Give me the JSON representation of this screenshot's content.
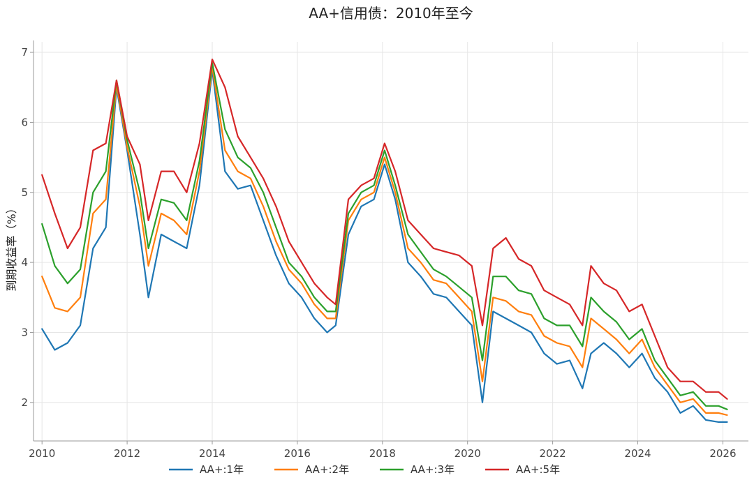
{
  "chart_data": {
    "type": "line",
    "title": "AA+信用债：2010年至今",
    "xlabel": "",
    "ylabel": "到期收益率（%）",
    "xlim": [
      2009.8,
      2026.6
    ],
    "ylim": [
      1.45,
      7.15
    ],
    "x_ticks": [
      2010,
      2012,
      2014,
      2016,
      2018,
      2020,
      2022,
      2024,
      2026
    ],
    "x_tick_labels": [
      "2010",
      "2012",
      "2014",
      "2016",
      "2018",
      "2020",
      "2022",
      "2024",
      "2026"
    ],
    "y_ticks": [
      2,
      3,
      4,
      5,
      6,
      7
    ],
    "y_tick_labels": [
      "2",
      "3",
      "4",
      "5",
      "6",
      "7"
    ],
    "grid": true,
    "legend_position": "bottom",
    "x": [
      2010.0,
      2010.3,
      2010.6,
      2010.9,
      2011.2,
      2011.5,
      2011.75,
      2012.0,
      2012.3,
      2012.5,
      2012.8,
      2013.1,
      2013.4,
      2013.7,
      2014.0,
      2014.3,
      2014.6,
      2014.9,
      2015.2,
      2015.5,
      2015.8,
      2016.1,
      2016.4,
      2016.7,
      2016.9,
      2017.2,
      2017.5,
      2017.8,
      2018.05,
      2018.3,
      2018.6,
      2018.9,
      2019.2,
      2019.5,
      2019.8,
      2020.1,
      2020.35,
      2020.6,
      2020.9,
      2021.2,
      2021.5,
      2021.8,
      2022.1,
      2022.4,
      2022.7,
      2022.9,
      2023.2,
      2023.5,
      2023.8,
      2024.1,
      2024.4,
      2024.7,
      2025.0,
      2025.3,
      2025.6,
      2025.9,
      2026.1
    ],
    "series": [
      {
        "name": "AA+:1年",
        "color": "#1f77b4",
        "values": [
          3.05,
          2.75,
          2.85,
          3.1,
          4.2,
          4.5,
          6.5,
          5.6,
          4.4,
          3.5,
          4.4,
          4.3,
          4.2,
          5.1,
          6.75,
          5.3,
          5.05,
          5.1,
          4.6,
          4.1,
          3.7,
          3.5,
          3.2,
          3.0,
          3.1,
          4.4,
          4.8,
          4.9,
          5.4,
          4.9,
          4.0,
          3.8,
          3.55,
          3.5,
          3.3,
          3.1,
          2.0,
          3.3,
          3.2,
          3.1,
          3.0,
          2.7,
          2.55,
          2.6,
          2.2,
          2.7,
          2.85,
          2.7,
          2.5,
          2.7,
          2.35,
          2.15,
          1.85,
          1.95,
          1.75,
          1.72,
          1.72
        ]
      },
      {
        "name": "AA+:2年",
        "color": "#ff7f0e",
        "values": [
          3.8,
          3.35,
          3.3,
          3.5,
          4.7,
          4.9,
          6.55,
          5.65,
          4.8,
          3.95,
          4.7,
          4.6,
          4.4,
          5.3,
          6.8,
          5.6,
          5.3,
          5.2,
          4.8,
          4.3,
          3.9,
          3.7,
          3.4,
          3.2,
          3.2,
          4.6,
          4.9,
          5.0,
          5.5,
          5.0,
          4.2,
          4.0,
          3.75,
          3.7,
          3.5,
          3.3,
          2.3,
          3.5,
          3.45,
          3.3,
          3.25,
          2.95,
          2.85,
          2.8,
          2.5,
          3.2,
          3.05,
          2.9,
          2.7,
          2.9,
          2.5,
          2.25,
          2.0,
          2.05,
          1.85,
          1.85,
          1.82
        ]
      },
      {
        "name": "AA+:3年",
        "color": "#2ca02c",
        "values": [
          4.55,
          3.95,
          3.7,
          3.9,
          5.0,
          5.3,
          6.6,
          5.75,
          5.0,
          4.2,
          4.9,
          4.85,
          4.6,
          5.45,
          6.85,
          5.9,
          5.5,
          5.35,
          5.0,
          4.5,
          4.0,
          3.8,
          3.5,
          3.3,
          3.3,
          4.7,
          5.0,
          5.1,
          5.6,
          5.1,
          4.4,
          4.15,
          3.9,
          3.8,
          3.65,
          3.5,
          2.6,
          3.8,
          3.8,
          3.6,
          3.55,
          3.2,
          3.1,
          3.1,
          2.8,
          3.5,
          3.3,
          3.15,
          2.9,
          3.05,
          2.6,
          2.35,
          2.1,
          2.15,
          1.95,
          1.95,
          1.9
        ]
      },
      {
        "name": "AA+:5年",
        "color": "#d62728",
        "values": [
          5.25,
          4.7,
          4.2,
          4.5,
          5.6,
          5.7,
          6.6,
          5.8,
          5.4,
          4.6,
          5.3,
          5.3,
          5.0,
          5.7,
          6.9,
          6.5,
          5.8,
          5.5,
          5.2,
          4.8,
          4.3,
          4.0,
          3.7,
          3.5,
          3.4,
          4.9,
          5.1,
          5.2,
          5.7,
          5.3,
          4.6,
          4.4,
          4.2,
          4.15,
          4.1,
          3.95,
          3.1,
          4.2,
          4.35,
          4.05,
          3.95,
          3.6,
          3.5,
          3.4,
          3.1,
          3.95,
          3.7,
          3.6,
          3.3,
          3.4,
          2.95,
          2.5,
          2.3,
          2.3,
          2.15,
          2.15,
          2.05
        ]
      }
    ]
  }
}
